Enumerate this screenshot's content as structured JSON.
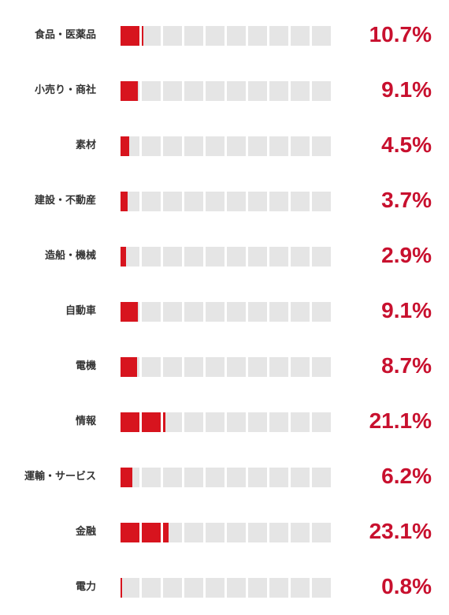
{
  "chart_data": {
    "type": "bar",
    "categories": [
      "食品・医薬品",
      "小売り・商社",
      "素材",
      "建設・不動産",
      "造船・機械",
      "自動車",
      "電機",
      "情報",
      "運輸・サービス",
      "金融",
      "電力"
    ],
    "values": [
      10.7,
      9.1,
      4.5,
      3.7,
      2.9,
      9.1,
      8.7,
      21.1,
      6.2,
      23.1,
      0.8
    ],
    "value_labels": [
      "10.7%",
      "9.1%",
      "4.5%",
      "3.7%",
      "2.9%",
      "9.1%",
      "8.7%",
      "21.1%",
      "6.2%",
      "23.1%",
      "0.8%"
    ],
    "cells_total": 10,
    "max": 100,
    "colors": {
      "fill": "#d7141e",
      "empty": "#e5e5e5",
      "value_text": "#c8102e",
      "label_text": "#333333"
    }
  }
}
